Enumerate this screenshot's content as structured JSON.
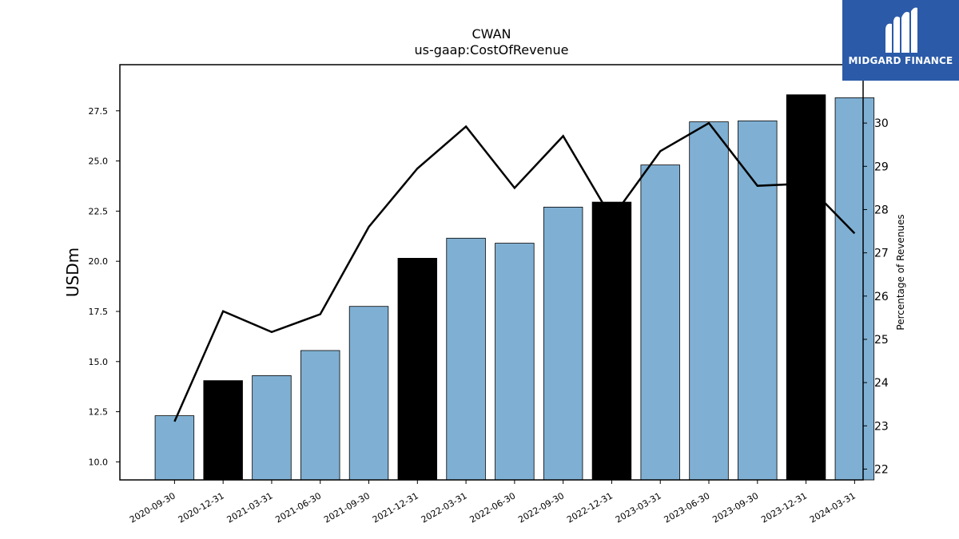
{
  "logo": {
    "text": "MIDGARD FINANCE",
    "bg_color": "#2b5aa8"
  },
  "chart_data": {
    "type": "bar",
    "title": "CWAN",
    "subtitle": "us-gaap:CostOfRevenue",
    "ylabel": "USDm",
    "ylabel_right": "Percentage of Revenues",
    "ylim": [
      9.1,
      29.8
    ],
    "ylim_right": [
      21.75,
      31.35
    ],
    "y_ticks": [
      10.0,
      12.5,
      15.0,
      17.5,
      20.0,
      22.5,
      25.0,
      27.5
    ],
    "y_ticks_right": [
      22,
      23,
      24,
      25,
      26,
      27,
      28,
      29,
      30
    ],
    "categories": [
      "2020-09-30",
      "2020-12-31",
      "2021-03-31",
      "2021-06-30",
      "2021-09-30",
      "2021-12-31",
      "2022-03-31",
      "2022-06-30",
      "2022-09-30",
      "2022-12-31",
      "2023-03-31",
      "2023-06-30",
      "2023-09-30",
      "2023-12-31",
      "2024-03-31"
    ],
    "series": [
      {
        "type": "bar",
        "axis": "left",
        "values": [
          12.3,
          14.05,
          14.3,
          15.55,
          17.75,
          20.15,
          21.15,
          20.9,
          22.7,
          22.95,
          24.8,
          26.95,
          27.0,
          28.3,
          28.15
        ],
        "colors": [
          "#7fb0d3",
          "#000000",
          "#7fb0d3",
          "#7fb0d3",
          "#7fb0d3",
          "#000000",
          "#7fb0d3",
          "#7fb0d3",
          "#7fb0d3",
          "#000000",
          "#7fb0d3",
          "#7fb0d3",
          "#7fb0d3",
          "#000000",
          "#7fb0d3"
        ]
      },
      {
        "type": "line",
        "axis": "right",
        "color": "#000000",
        "values": [
          23.1,
          25.65,
          25.17,
          25.58,
          27.6,
          28.95,
          29.92,
          28.5,
          29.7,
          27.8,
          29.35,
          30.0,
          28.55,
          28.6,
          27.45
        ]
      }
    ],
    "grid": false,
    "legend": "none"
  }
}
